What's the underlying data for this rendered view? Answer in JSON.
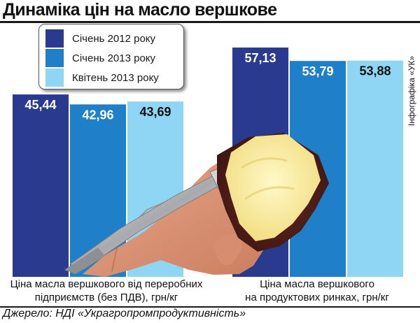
{
  "title": "Динаміка цін на масло вершкове",
  "credit": "Інфографіка «УК»",
  "source": "Джерело: НДІ «Украгропромпродуктивність»",
  "legend": [
    {
      "label": "Січень 2012 року",
      "color": "#2a3a8f"
    },
    {
      "label": "Січень 2013 року",
      "color": "#1f7fc8"
    },
    {
      "label": "Квітень 2013 року",
      "color": "#8fd6f4"
    }
  ],
  "chart_data": {
    "type": "bar",
    "categories": [
      "Ціна масла вершкового від переробних\nпідприємств (без ПДВ), грн/кг",
      "Ціна масла вершкового\nна продуктових ринках, грн/кг"
    ],
    "series": [
      {
        "name": "Січень 2012 року",
        "values": [
          45.44,
          57.13
        ],
        "labels": [
          "45,44",
          "57,13"
        ],
        "color": "#2a3a8f"
      },
      {
        "name": "Січень 2013 року",
        "values": [
          42.96,
          53.79
        ],
        "labels": [
          "42,96",
          "53,79"
        ],
        "color": "#1f7fc8"
      },
      {
        "name": "Квітень 2013 року",
        "values": [
          43.69,
          53.88
        ],
        "labels": [
          "43,69",
          "53,88"
        ],
        "color": "#8fd6f4"
      }
    ],
    "grid": false,
    "legend_position": "top-left"
  }
}
